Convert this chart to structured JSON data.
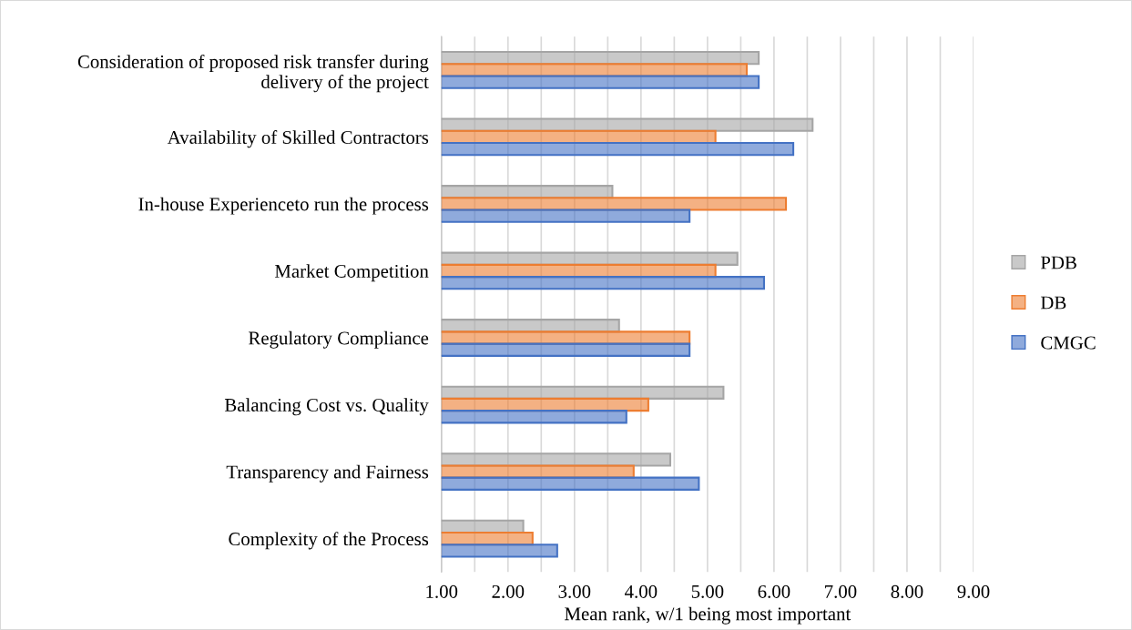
{
  "chart_data": {
    "type": "bar",
    "orientation": "horizontal",
    "categories": [
      "Consideration of proposed risk transfer during\ndelivery of the project",
      "Availability of Skilled Contractors",
      "In-house Experienceto run the process",
      "Market Competition",
      "Regulatory Compliance",
      "Balancing Cost vs. Quality",
      "Transparency and Fairness",
      "Complexity of the Process"
    ],
    "series": [
      {
        "name": "PDB",
        "color": "#a5a5a5",
        "values": [
          5.77,
          6.58,
          3.57,
          5.45,
          3.67,
          5.24,
          4.44,
          2.23
        ]
      },
      {
        "name": "DB",
        "color": "#ed7d31",
        "values": [
          5.59,
          5.12,
          6.18,
          5.12,
          4.73,
          4.11,
          3.89,
          2.37
        ]
      },
      {
        "name": "CMGC",
        "color": "#4472c4",
        "values": [
          5.77,
          6.29,
          4.73,
          5.85,
          4.73,
          3.78,
          4.87,
          2.74
        ]
      }
    ],
    "xlabel": "Mean rank, w/1 being most important",
    "xlim": [
      1,
      9
    ],
    "xticks": [
      {
        "value": 1,
        "label": "1.00"
      },
      {
        "value": 1.5,
        "label": null
      },
      {
        "value": 2,
        "label": "2.00"
      },
      {
        "value": 2.5,
        "label": null
      },
      {
        "value": 3,
        "label": "3.00"
      },
      {
        "value": 3.5,
        "label": null
      },
      {
        "value": 4,
        "label": "4.00"
      },
      {
        "value": 4.5,
        "label": null
      },
      {
        "value": 5,
        "label": "5.00"
      },
      {
        "value": 5.5,
        "label": null
      },
      {
        "value": 6,
        "label": "6.00"
      },
      {
        "value": 6.5,
        "label": null
      },
      {
        "value": 7,
        "label": "7.00"
      },
      {
        "value": 7.5,
        "label": null
      },
      {
        "value": 8,
        "label": "8.00"
      },
      {
        "value": 8.5,
        "label": null
      },
      {
        "value": 9,
        "label": "9.00"
      }
    ],
    "grid": "x",
    "legend": "right"
  }
}
